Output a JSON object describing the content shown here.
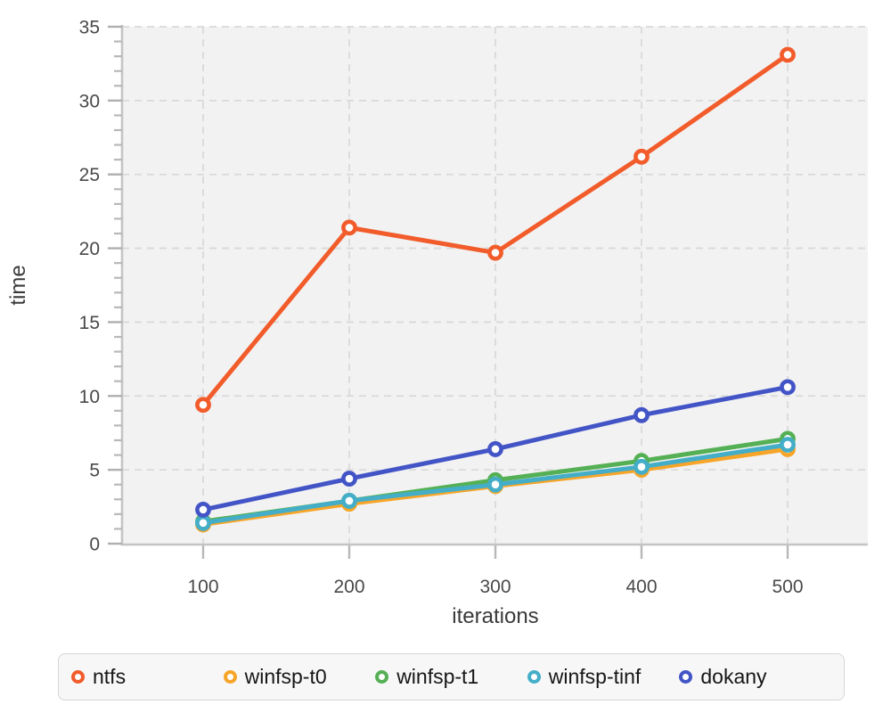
{
  "chart_data": {
    "type": "line",
    "title": "",
    "xlabel": "iterations",
    "ylabel": "time",
    "x": [
      100,
      200,
      300,
      400,
      500
    ],
    "x_ticks": [
      "100",
      "200",
      "300",
      "400",
      "500"
    ],
    "y_ticks": [
      "0",
      "5",
      "10",
      "15",
      "20",
      "25",
      "30",
      "35"
    ],
    "y_tick_values": [
      0,
      5,
      10,
      15,
      20,
      25,
      30,
      35
    ],
    "xlim": [
      100,
      500
    ],
    "ylim": [
      0,
      35
    ],
    "y_minor_tick_step": 1,
    "grid": "dashed",
    "grid_color": "#d9d9d9",
    "plot_background": "#f2f2f2",
    "axis_color": "#c4c4c4",
    "legend_position": "bottom",
    "marker": "open-circle",
    "series": [
      {
        "name": "ntfs",
        "color": "#f25c2b",
        "z": 5,
        "values": [
          9.4,
          21.4,
          19.7,
          26.2,
          33.1
        ]
      },
      {
        "name": "winfsp-t0",
        "color": "#f7a528",
        "z": 1,
        "values": [
          1.3,
          2.7,
          3.9,
          5.0,
          6.4
        ]
      },
      {
        "name": "winfsp-t1",
        "color": "#55b055",
        "z": 2,
        "values": [
          1.5,
          2.9,
          4.3,
          5.6,
          7.1
        ]
      },
      {
        "name": "winfsp-tinf",
        "color": "#44aec9",
        "z": 3,
        "values": [
          1.4,
          2.9,
          4.0,
          5.2,
          6.7
        ]
      },
      {
        "name": "dokany",
        "color": "#4355c6",
        "z": 4,
        "values": [
          2.3,
          4.4,
          6.4,
          8.7,
          10.6
        ]
      }
    ]
  }
}
